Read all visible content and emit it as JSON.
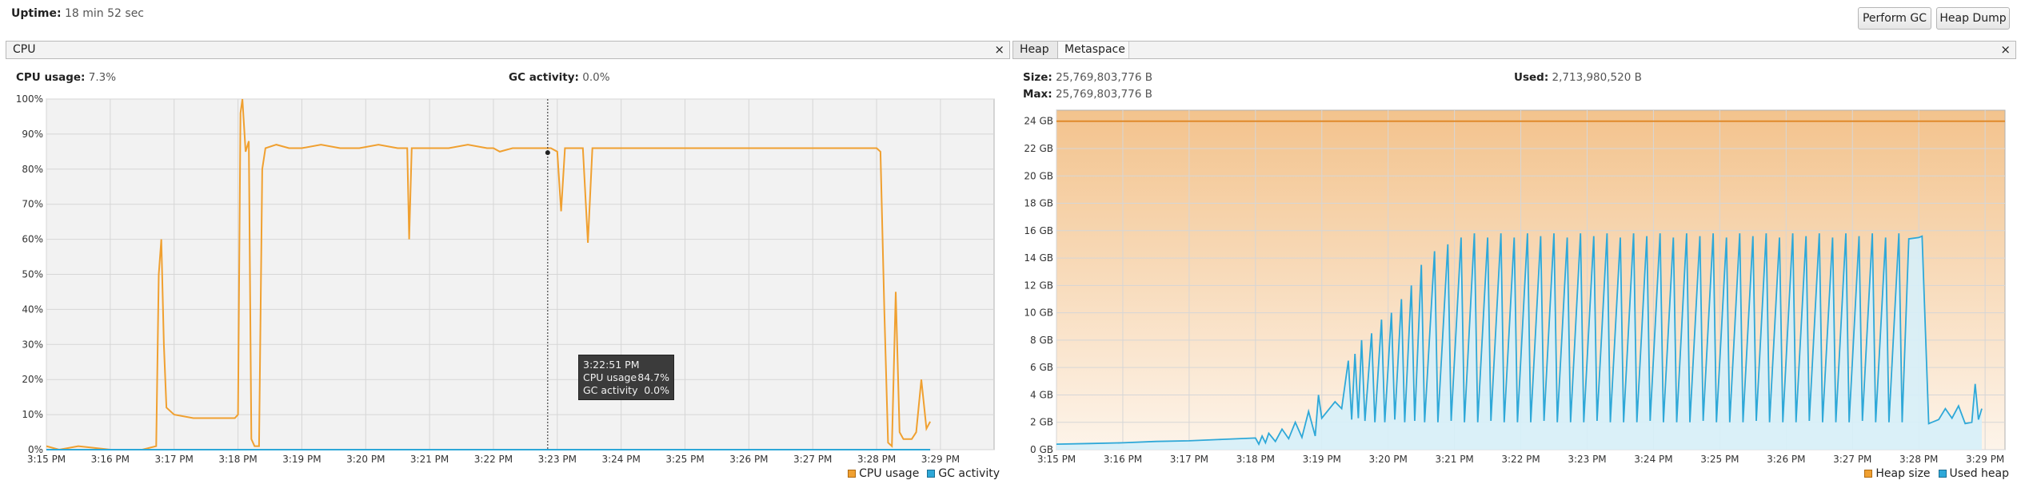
{
  "header": {
    "uptime_label": "Uptime:",
    "uptime_value": "18 min 52 sec",
    "perform_gc_label": "Perform GC",
    "heap_dump_label": "Heap Dump"
  },
  "cpu_panel": {
    "tab_label": "CPU",
    "close_glyph": "×",
    "cpu_usage_label": "CPU usage:",
    "cpu_usage_value": "7.3%",
    "gc_activity_label": "GC activity:",
    "gc_activity_value": "0.0%",
    "tooltip": {
      "time": "3:22:51 PM",
      "cpu_label": "CPU usage",
      "cpu_value": "84.7%",
      "gc_label": "GC activity",
      "gc_value": "0.0%"
    },
    "legend": [
      {
        "label": "CPU usage",
        "color": "#f0a030"
      },
      {
        "label": "GC activity",
        "color": "#2ea8d8"
      }
    ]
  },
  "heap_panel": {
    "tabs": [
      "Heap",
      "Metaspace"
    ],
    "active_tab": "Heap",
    "close_glyph": "×",
    "size_label": "Size:",
    "size_value": "25,769,803,776 B",
    "max_label": "Max:",
    "max_value": "25,769,803,776 B",
    "used_label": "Used:",
    "used_value": "2,713,980,520 B",
    "legend": [
      {
        "label": "Heap size",
        "color": "#f0a030"
      },
      {
        "label": "Used heap",
        "color": "#2ea8d8"
      }
    ]
  },
  "chart_data": [
    {
      "type": "line",
      "title": "CPU",
      "x_ticks": [
        "3:15 PM",
        "3:16 PM",
        "3:17 PM",
        "3:18 PM",
        "3:19 PM",
        "3:20 PM",
        "3:21 PM",
        "3:22 PM",
        "3:23 PM",
        "3:24 PM",
        "3:25 PM",
        "3:26 PM",
        "3:27 PM",
        "3:28 PM",
        "3:29 PM"
      ],
      "y_ticks": [
        "0%",
        "10%",
        "20%",
        "30%",
        "40%",
        "50%",
        "60%",
        "70%",
        "80%",
        "90%",
        "100%"
      ],
      "ylim": [
        0,
        100
      ],
      "y_unit": "%",
      "grid": true,
      "legend_position": "bottom-right",
      "series": [
        {
          "name": "CPU usage",
          "color": "#f0a030",
          "points": [
            [
              0,
              1
            ],
            [
              0.2,
              0
            ],
            [
              0.5,
              1
            ],
            [
              1,
              0
            ],
            [
              1.5,
              0
            ],
            [
              1.72,
              1
            ],
            [
              1.76,
              50
            ],
            [
              1.8,
              60
            ],
            [
              1.84,
              30
            ],
            [
              1.88,
              12
            ],
            [
              2,
              10
            ],
            [
              2.3,
              9
            ],
            [
              2.6,
              9
            ],
            [
              2.95,
              9
            ],
            [
              3.0,
              10
            ],
            [
              3.04,
              96
            ],
            [
              3.07,
              100
            ],
            [
              3.12,
              85
            ],
            [
              3.17,
              88
            ],
            [
              3.21,
              3
            ],
            [
              3.26,
              1
            ],
            [
              3.33,
              1
            ],
            [
              3.38,
              80
            ],
            [
              3.43,
              86
            ],
            [
              3.6,
              87
            ],
            [
              3.8,
              86
            ],
            [
              4,
              86
            ],
            [
              4.3,
              87
            ],
            [
              4.6,
              86
            ],
            [
              4.9,
              86
            ],
            [
              5.2,
              87
            ],
            [
              5.5,
              86
            ],
            [
              5.65,
              86
            ],
            [
              5.68,
              60
            ],
            [
              5.72,
              86
            ],
            [
              6,
              86
            ],
            [
              6.3,
              86
            ],
            [
              6.6,
              87
            ],
            [
              6.9,
              86
            ],
            [
              7.0,
              86
            ],
            [
              7.1,
              85
            ],
            [
              7.3,
              86
            ],
            [
              7.6,
              86
            ],
            [
              7.9,
              86
            ],
            [
              8.0,
              85
            ],
            [
              8.06,
              68
            ],
            [
              8.12,
              86
            ],
            [
              8.4,
              86
            ],
            [
              8.48,
              59
            ],
            [
              8.55,
              86
            ],
            [
              8.9,
              86
            ],
            [
              9.2,
              86
            ],
            [
              9.5,
              86
            ],
            [
              9.8,
              86
            ],
            [
              10.1,
              86
            ],
            [
              10.4,
              86
            ],
            [
              10.7,
              86
            ],
            [
              11.0,
              86
            ],
            [
              11.3,
              86
            ],
            [
              11.6,
              86
            ],
            [
              11.9,
              86
            ],
            [
              12.2,
              86
            ],
            [
              12.5,
              86
            ],
            [
              12.8,
              86
            ],
            [
              13.0,
              86
            ],
            [
              13.06,
              85
            ],
            [
              13.12,
              40
            ],
            [
              13.18,
              2
            ],
            [
              13.24,
              1
            ],
            [
              13.3,
              45
            ],
            [
              13.36,
              5
            ],
            [
              13.42,
              3
            ],
            [
              13.55,
              3
            ],
            [
              13.62,
              5
            ],
            [
              13.7,
              20
            ],
            [
              13.78,
              6
            ],
            [
              13.84,
              8
            ]
          ]
        },
        {
          "name": "GC activity",
          "color": "#2ea8d8",
          "points": [
            [
              0,
              0
            ],
            [
              13.84,
              0
            ]
          ]
        }
      ],
      "tooltip_x": 7.85
    },
    {
      "type": "area",
      "title": "Heap",
      "x_ticks": [
        "3:15 PM",
        "3:16 PM",
        "3:17 PM",
        "3:18 PM",
        "3:19 PM",
        "3:20 PM",
        "3:21 PM",
        "3:22 PM",
        "3:23 PM",
        "3:24 PM",
        "3:25 PM",
        "3:26 PM",
        "3:27 PM",
        "3:28 PM",
        "3:29 PM"
      ],
      "y_ticks": [
        "0 GB",
        "2 GB",
        "4 GB",
        "6 GB",
        "8 GB",
        "10 GB",
        "12 GB",
        "14 GB",
        "16 GB",
        "18 GB",
        "20 GB",
        "22 GB",
        "24 GB"
      ],
      "ylim": [
        0,
        24.8
      ],
      "y_unit": "GB",
      "grid": true,
      "legend_position": "bottom-right",
      "series": [
        {
          "name": "Heap size",
          "color": "#f0a030",
          "points": [
            [
              0,
              24
            ],
            [
              14.3,
              24
            ]
          ]
        },
        {
          "name": "Used heap",
          "color": "#2ea8d8",
          "points": [
            [
              0,
              0.4
            ],
            [
              0.5,
              0.45
            ],
            [
              1,
              0.5
            ],
            [
              1.5,
              0.6
            ],
            [
              2,
              0.65
            ],
            [
              2.5,
              0.75
            ],
            [
              3,
              0.85
            ],
            [
              3.05,
              0.4
            ],
            [
              3.1,
              1.0
            ],
            [
              3.15,
              0.5
            ],
            [
              3.2,
              1.2
            ],
            [
              3.3,
              0.6
            ],
            [
              3.4,
              1.5
            ],
            [
              3.5,
              0.8
            ],
            [
              3.6,
              2.0
            ],
            [
              3.7,
              0.9
            ],
            [
              3.8,
              2.8
            ],
            [
              3.9,
              1.0
            ],
            [
              3.95,
              4.0
            ],
            [
              4.0,
              2.3
            ],
            [
              4.2,
              3.5
            ],
            [
              4.3,
              3.0
            ],
            [
              4.4,
              6.5
            ],
            [
              4.45,
              2.2
            ],
            [
              4.5,
              7.0
            ],
            [
              4.55,
              2.3
            ],
            [
              4.6,
              8.0
            ],
            [
              4.65,
              2.1
            ],
            [
              4.75,
              8.5
            ],
            [
              4.8,
              2.0
            ],
            [
              4.9,
              9.5
            ],
            [
              4.95,
              2.0
            ],
            [
              5.05,
              10.0
            ],
            [
              5.1,
              2.2
            ],
            [
              5.2,
              11.0
            ],
            [
              5.25,
              2.0
            ],
            [
              5.35,
              12.0
            ],
            [
              5.4,
              2.1
            ],
            [
              5.5,
              13.5
            ],
            [
              5.55,
              2.0
            ],
            [
              5.7,
              14.5
            ],
            [
              5.75,
              2.0
            ],
            [
              5.9,
              15.0
            ],
            [
              5.95,
              2.1
            ],
            [
              6.1,
              15.5
            ],
            [
              6.15,
              2.0
            ],
            [
              6.3,
              15.8
            ],
            [
              6.35,
              2.0
            ],
            [
              6.5,
              15.5
            ],
            [
              6.55,
              2.1
            ],
            [
              6.7,
              15.8
            ],
            [
              6.75,
              2.0
            ],
            [
              6.9,
              15.5
            ],
            [
              6.95,
              2.0
            ],
            [
              7.1,
              15.8
            ],
            [
              7.15,
              2.0
            ],
            [
              7.3,
              15.6
            ],
            [
              7.35,
              2.1
            ],
            [
              7.5,
              15.8
            ],
            [
              7.55,
              2.0
            ],
            [
              7.7,
              15.5
            ],
            [
              7.75,
              2.0
            ],
            [
              7.9,
              15.8
            ],
            [
              7.95,
              2.0
            ],
            [
              8.1,
              15.6
            ],
            [
              8.15,
              2.1
            ],
            [
              8.3,
              15.8
            ],
            [
              8.35,
              2.0
            ],
            [
              8.5,
              15.5
            ],
            [
              8.55,
              2.0
            ],
            [
              8.7,
              15.8
            ],
            [
              8.75,
              2.0
            ],
            [
              8.9,
              15.6
            ],
            [
              8.95,
              2.1
            ],
            [
              9.1,
              15.8
            ],
            [
              9.15,
              2.0
            ],
            [
              9.3,
              15.5
            ],
            [
              9.35,
              2.0
            ],
            [
              9.5,
              15.8
            ],
            [
              9.55,
              2.0
            ],
            [
              9.7,
              15.6
            ],
            [
              9.75,
              2.1
            ],
            [
              9.9,
              15.8
            ],
            [
              9.95,
              2.0
            ],
            [
              10.1,
              15.5
            ],
            [
              10.15,
              2.0
            ],
            [
              10.3,
              15.8
            ],
            [
              10.35,
              2.0
            ],
            [
              10.5,
              15.6
            ],
            [
              10.55,
              2.1
            ],
            [
              10.7,
              15.8
            ],
            [
              10.75,
              2.0
            ],
            [
              10.9,
              15.5
            ],
            [
              10.95,
              2.0
            ],
            [
              11.1,
              15.8
            ],
            [
              11.15,
              2.0
            ],
            [
              11.3,
              15.6
            ],
            [
              11.35,
              2.1
            ],
            [
              11.5,
              15.8
            ],
            [
              11.55,
              2.0
            ],
            [
              11.7,
              15.5
            ],
            [
              11.75,
              2.0
            ],
            [
              11.9,
              15.8
            ],
            [
              11.95,
              2.0
            ],
            [
              12.1,
              15.6
            ],
            [
              12.15,
              2.1
            ],
            [
              12.3,
              15.8
            ],
            [
              12.35,
              2.0
            ],
            [
              12.5,
              15.5
            ],
            [
              12.55,
              2.0
            ],
            [
              12.7,
              15.8
            ],
            [
              12.75,
              2.0
            ],
            [
              12.85,
              15.4
            ],
            [
              13.0,
              15.5
            ],
            [
              13.05,
              15.6
            ],
            [
              13.15,
              1.9
            ],
            [
              13.3,
              2.2
            ],
            [
              13.4,
              3.0
            ],
            [
              13.5,
              2.3
            ],
            [
              13.6,
              3.2
            ],
            [
              13.7,
              1.9
            ],
            [
              13.8,
              2.0
            ],
            [
              13.85,
              4.8
            ],
            [
              13.9,
              2.2
            ],
            [
              13.95,
              3.0
            ]
          ]
        }
      ]
    }
  ]
}
